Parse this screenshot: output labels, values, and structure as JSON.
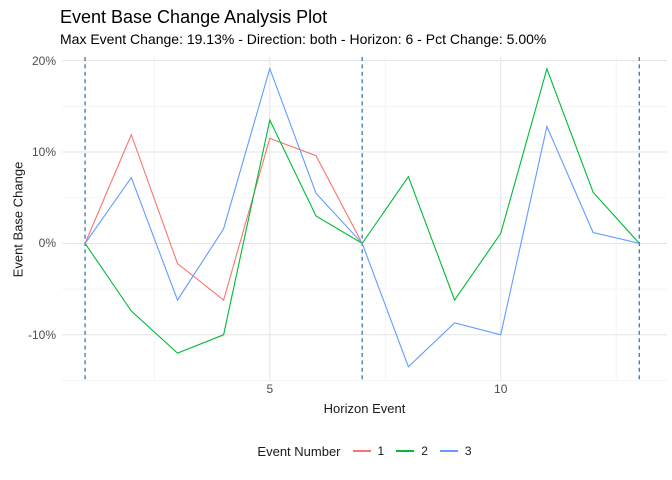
{
  "header": {
    "title": "Event Base Change Analysis Plot",
    "subtitle": "Max Event Change: 19.13% - Direction: both - Horizon: 6 - Pct Change: 5.00%"
  },
  "chart_data": {
    "type": "line",
    "title": "Event Base Change Analysis Plot",
    "subtitle": "Max Event Change: 19.13% - Direction: both - Horizon: 6 - Pct Change: 5.00%",
    "xlabel": "Horizon Event",
    "ylabel": "Event Base Change",
    "x_domain": [
      0.5,
      13.6
    ],
    "y_domain": [
      -15.0,
      20.4
    ],
    "grid": {
      "major_color": "#e3e3e3",
      "minor_color": "#f1f1f1",
      "on": true
    },
    "x_ticks": [
      {
        "value": 5,
        "label": "5"
      },
      {
        "value": 10,
        "label": "10"
      }
    ],
    "y_ticks": [
      {
        "value": 20,
        "label": "20%"
      },
      {
        "value": 10,
        "label": "10%"
      },
      {
        "value": 0,
        "label": "0%"
      },
      {
        "value": -10,
        "label": "-10%"
      }
    ],
    "x_minor": [
      2.5,
      7.5,
      12.5
    ],
    "y_minor": [
      15,
      5,
      -5,
      -15
    ],
    "vlines": {
      "x": [
        1,
        7,
        13
      ],
      "color": "#4682B4",
      "style": "dashed"
    },
    "legend": {
      "title": "Event Number",
      "position": "bottom",
      "entries": [
        {
          "label": "1",
          "color": "#F8766D"
        },
        {
          "label": "2",
          "color": "#00BA38"
        },
        {
          "label": "3",
          "color": "#619CFF"
        }
      ]
    },
    "series": [
      {
        "name": "1",
        "color": "#F8766D",
        "points": [
          [
            1,
            0
          ],
          [
            2,
            11.9
          ],
          [
            3,
            -2.2
          ],
          [
            4,
            -6.2
          ],
          [
            5,
            11.5
          ],
          [
            6,
            9.6
          ],
          [
            7,
            0
          ]
        ]
      },
      {
        "name": "2",
        "color": "#00BA38",
        "points": [
          [
            1,
            0
          ],
          [
            2,
            -7.4
          ],
          [
            3,
            -12.0
          ],
          [
            4,
            -10.0
          ],
          [
            5,
            13.5
          ],
          [
            6,
            3.0
          ],
          [
            7,
            0
          ],
          [
            8,
            7.3
          ],
          [
            9,
            -6.2
          ],
          [
            10,
            1.1
          ],
          [
            11,
            19.1
          ],
          [
            12,
            5.6
          ],
          [
            13,
            0
          ]
        ]
      },
      {
        "name": "3",
        "color": "#619CFF",
        "points": [
          [
            1,
            0
          ],
          [
            2,
            7.2
          ],
          [
            3,
            -6.2
          ],
          [
            4,
            1.6
          ],
          [
            5,
            19.13
          ],
          [
            6,
            5.5
          ],
          [
            7,
            0
          ],
          [
            8,
            -13.5
          ],
          [
            9,
            -8.7
          ],
          [
            10,
            -10.0
          ],
          [
            11,
            12.8
          ],
          [
            12,
            1.2
          ],
          [
            13,
            0
          ]
        ]
      }
    ]
  }
}
